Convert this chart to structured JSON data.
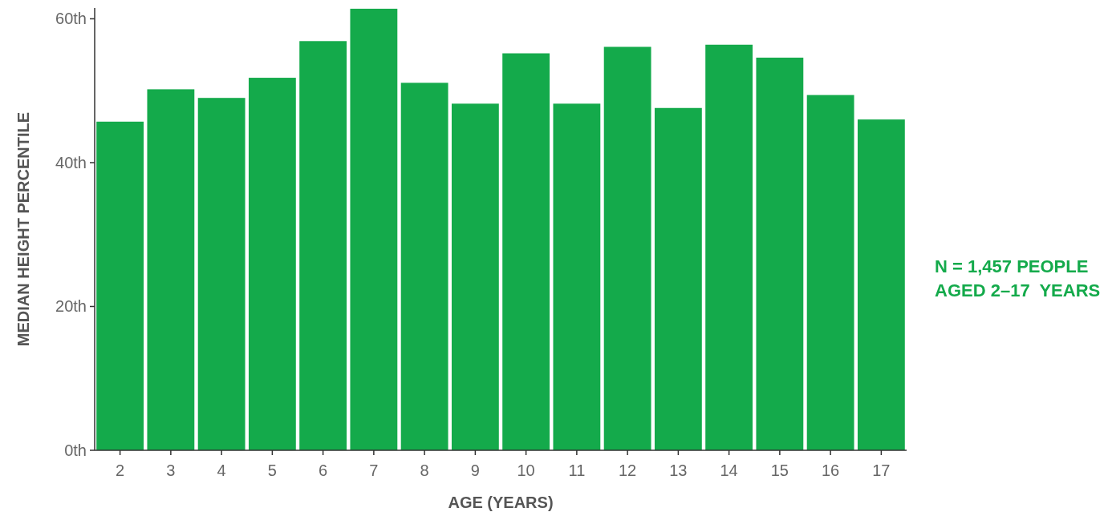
{
  "chart_data": {
    "type": "bar",
    "xlabel": "AGE (YEARS)",
    "ylabel": "MEDIAN HEIGHT PERCENTILE",
    "categories": [
      "2",
      "3",
      "4",
      "5",
      "6",
      "7",
      "8",
      "9",
      "10",
      "11",
      "12",
      "13",
      "14",
      "15",
      "16",
      "17"
    ],
    "values": [
      45.7,
      50.2,
      49.0,
      51.8,
      56.9,
      61.4,
      51.1,
      48.2,
      55.2,
      48.2,
      56.1,
      47.6,
      56.4,
      54.6,
      49.4,
      46.0
    ],
    "color": "#14aa4b",
    "ylim": [
      0,
      61.5
    ],
    "yticks": [
      {
        "value": 0,
        "label": "0th"
      },
      {
        "value": 20,
        "label": "20th"
      },
      {
        "value": 40,
        "label": "40th"
      },
      {
        "value": 60,
        "label": "60th"
      }
    ],
    "annotations": [
      "N = 1,457 PEOPLE\nAGED 2–17  YEARS"
    ],
    "grid": false
  }
}
